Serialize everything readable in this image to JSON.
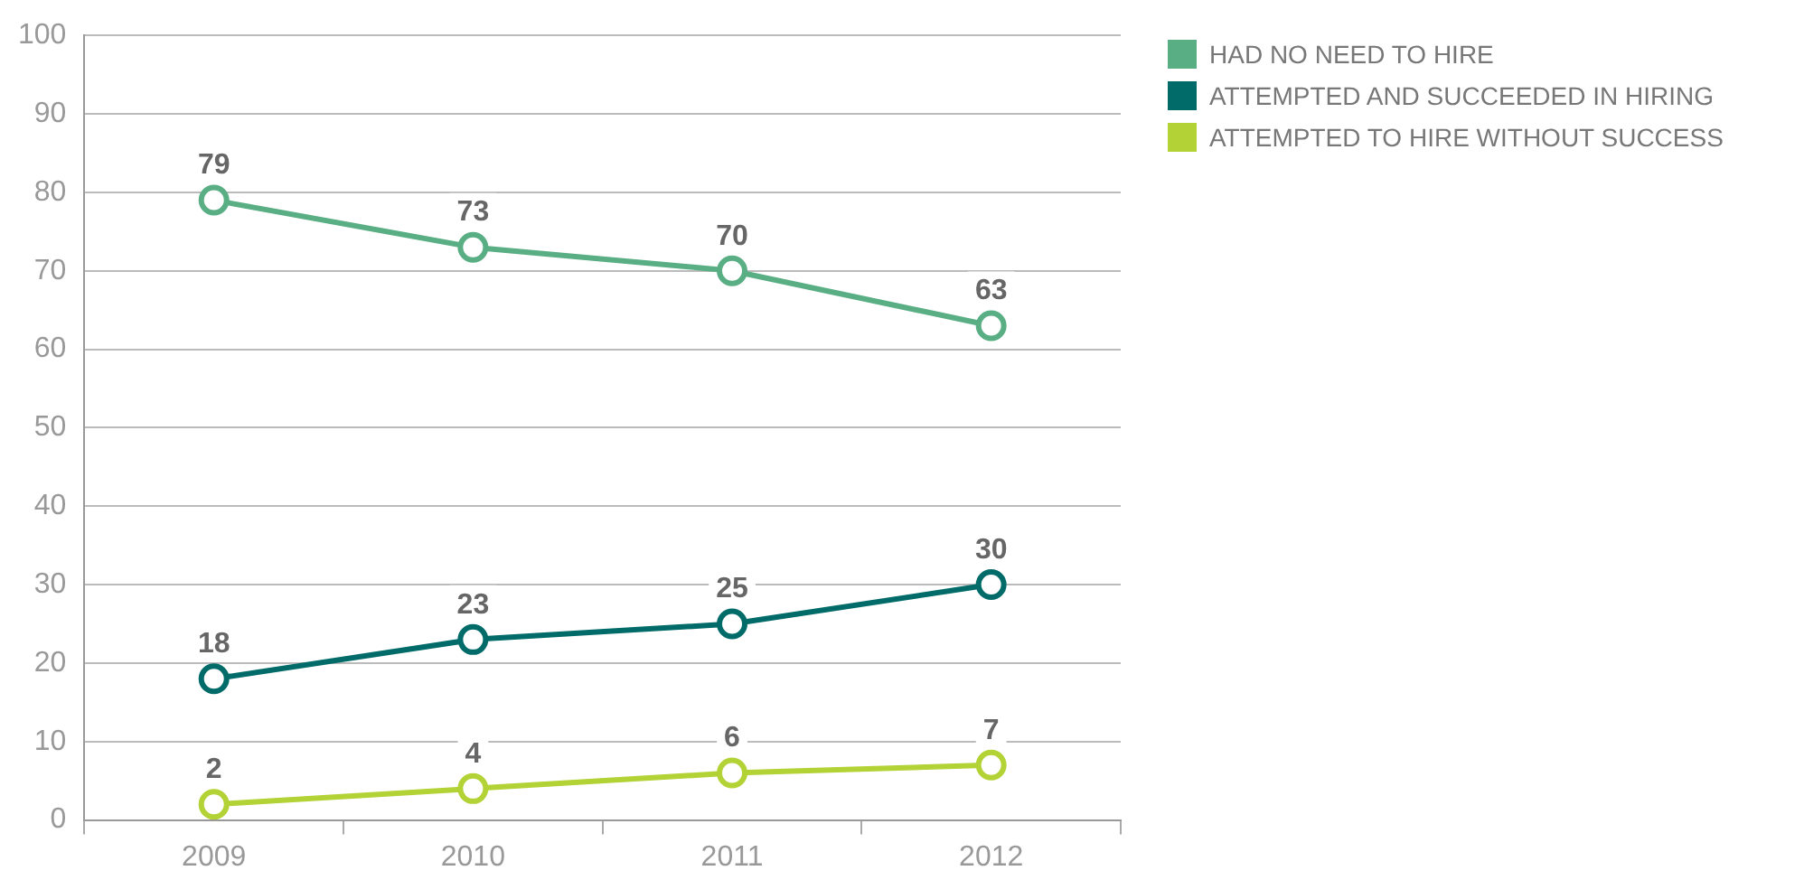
{
  "chart_data": {
    "type": "line",
    "categories": [
      "2009",
      "2010",
      "2011",
      "2012"
    ],
    "series": [
      {
        "name": "HAD NO NEED TO HIRE",
        "color": "#5aae84",
        "values": [
          79,
          73,
          70,
          63
        ]
      },
      {
        "name": "ATTEMPTED AND SUCCEEDED IN HIRING",
        "color": "#006b68",
        "values": [
          18,
          23,
          25,
          30
        ]
      },
      {
        "name": "ATTEMPTED TO HIRE WITHOUT SUCCESS",
        "color": "#b2d235",
        "values": [
          2,
          4,
          6,
          7
        ]
      }
    ],
    "ylim": [
      0,
      100
    ],
    "yticks": [
      0,
      10,
      20,
      30,
      40,
      50,
      60,
      70,
      80,
      90,
      100
    ],
    "grid": "y",
    "legend": "right",
    "marker": "circle",
    "line_style": "solid",
    "data_labels": true
  }
}
